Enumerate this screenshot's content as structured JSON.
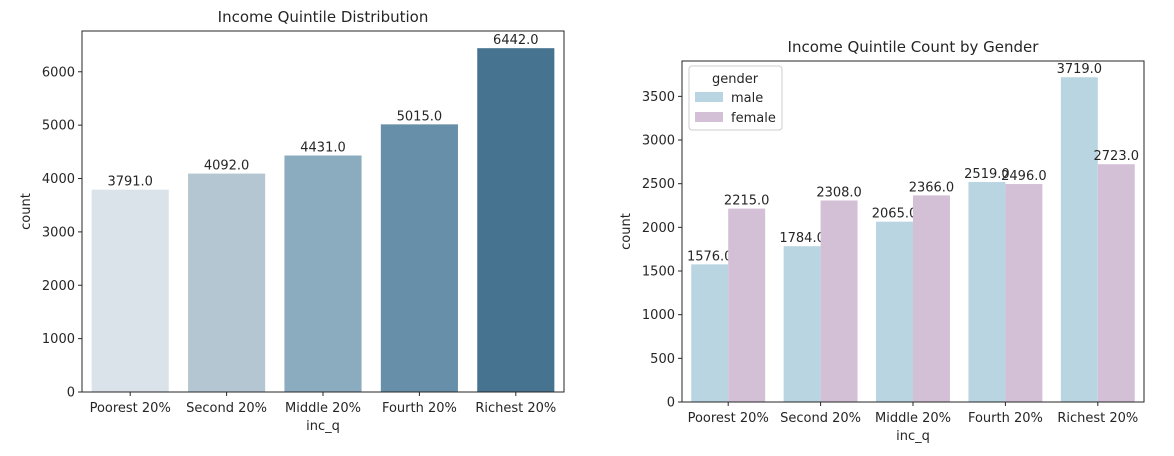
{
  "chart_data": [
    {
      "type": "bar",
      "title": "Income Quintile Distribution",
      "xlabel": "inc_q",
      "ylabel": "count",
      "categories": [
        "Poorest 20%",
        "Second 20%",
        "Middle 20%",
        "Fourth 20%",
        "Richest 20%"
      ],
      "values": [
        3791.0,
        4092.0,
        4431.0,
        5015.0,
        6442.0
      ],
      "data_labels": [
        "3791.0",
        "4092.0",
        "4431.0",
        "5015.0",
        "6442.0"
      ],
      "colors": [
        "#dae2ea",
        "#b3c6d1",
        "#8babbf",
        "#678fa9",
        "#467390"
      ],
      "ylim": [
        0,
        6764
      ],
      "yticks": [
        0,
        1000,
        2000,
        3000,
        4000,
        5000,
        6000
      ],
      "grid": false,
      "legend": null
    },
    {
      "type": "bar",
      "title": "Income Quintile Count by Gender",
      "xlabel": "inc_q",
      "ylabel": "count",
      "categories": [
        "Poorest 20%",
        "Second 20%",
        "Middle 20%",
        "Fourth 20%",
        "Richest 20%"
      ],
      "series": [
        {
          "name": "male",
          "values": [
            1576.0,
            1784.0,
            2065.0,
            2519.0,
            3719.0
          ],
          "data_labels": [
            "1576.0",
            "1784.0",
            "2065.0",
            "2519.0",
            "3719.0"
          ],
          "color": "#b8d5e1"
        },
        {
          "name": "female",
          "values": [
            2215.0,
            2308.0,
            2366.0,
            2496.0,
            2723.0
          ],
          "data_labels": [
            "2215.0",
            "2308.0",
            "2366.0",
            "2496.0",
            "2723.0"
          ],
          "color": "#d4c0d6"
        }
      ],
      "ylim": [
        0,
        3905
      ],
      "yticks": [
        0,
        500,
        1000,
        1500,
        2000,
        2500,
        3000,
        3500
      ],
      "grid": false,
      "legend": {
        "title": "gender",
        "placement": "top-left"
      }
    }
  ]
}
